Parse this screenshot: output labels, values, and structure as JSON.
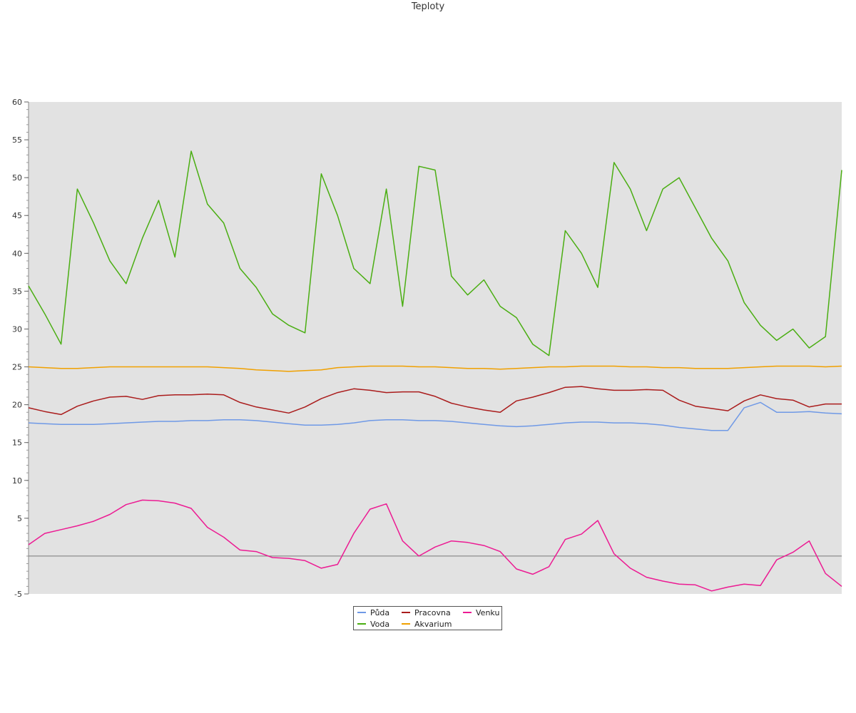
{
  "chart_data": {
    "type": "line",
    "title": "Teploty",
    "xlabel": "",
    "ylabel": "",
    "ylim": [
      -5,
      60
    ],
    "yticks": [
      -5,
      5,
      10,
      15,
      20,
      25,
      30,
      35,
      40,
      45,
      50,
      55,
      60
    ],
    "y_minor_step": 1,
    "zero_line": 0,
    "grid": false,
    "legend_position": "bottom-center",
    "background": "#e2e2e2",
    "x": [
      0,
      2,
      4,
      6,
      8,
      10,
      12,
      14,
      16,
      18,
      20,
      22,
      24,
      26,
      28,
      30,
      32,
      34,
      36,
      38,
      40,
      42,
      44,
      46,
      48,
      50,
      52,
      54,
      56,
      58,
      60,
      62,
      64,
      66,
      68,
      70,
      72,
      74,
      76,
      78,
      80,
      82,
      84,
      86,
      88,
      90,
      92,
      94,
      96,
      98,
      100
    ],
    "series": [
      {
        "name": "Půda",
        "color": "#6f99e6",
        "values": [
          17.6,
          17.5,
          17.4,
          17.4,
          17.4,
          17.5,
          17.6,
          17.7,
          17.8,
          17.8,
          17.9,
          17.9,
          18.0,
          18.0,
          17.9,
          17.7,
          17.5,
          17.3,
          17.3,
          17.4,
          17.6,
          17.9,
          18.0,
          18.0,
          17.9,
          17.9,
          17.8,
          17.6,
          17.4,
          17.2,
          17.1,
          17.2,
          17.4,
          17.6,
          17.7,
          17.7,
          17.6,
          17.6,
          17.5,
          17.3,
          17.0,
          16.8,
          16.6,
          16.6,
          19.6,
          20.3,
          19.0,
          19.0,
          19.1,
          18.9,
          18.8
        ]
      },
      {
        "name": "Voda",
        "color": "#4aae12",
        "values": [
          35.7,
          32.0,
          28.0,
          48.5,
          44.0,
          39.0,
          36.0,
          42.0,
          47.0,
          39.5,
          53.5,
          46.5,
          44.0,
          38.0,
          35.5,
          32.0,
          30.5,
          29.5,
          50.5,
          45.0,
          38.0,
          36.0,
          48.5,
          33.0,
          51.5,
          51.0,
          37.0,
          34.5,
          36.5,
          33.0,
          31.5,
          28.0,
          26.5,
          43.0,
          40.0,
          35.5,
          52.0,
          48.5,
          43.0,
          48.5,
          50.0,
          46.0,
          42.0,
          39.0,
          33.5,
          30.5,
          28.5,
          30.0,
          27.5,
          29.0,
          51.0
        ]
      },
      {
        "name": "Pracovna",
        "color": "#aa1c1c",
        "values": [
          19.6,
          19.1,
          18.7,
          19.8,
          20.5,
          21.0,
          21.1,
          20.7,
          21.2,
          21.3,
          21.3,
          21.4,
          21.3,
          20.3,
          19.7,
          19.3,
          18.9,
          19.7,
          20.8,
          21.6,
          22.1,
          21.9,
          21.6,
          21.7,
          21.7,
          21.1,
          20.2,
          19.7,
          19.3,
          19.0,
          20.5,
          21.0,
          21.6,
          22.3,
          22.4,
          22.1,
          21.9,
          21.9,
          22.0,
          21.9,
          20.6,
          19.8,
          19.5,
          19.2,
          20.5,
          21.3,
          20.8,
          20.6,
          19.7,
          20.1,
          20.1
        ]
      },
      {
        "name": "Akvarium",
        "color": "#f0a000",
        "values": [
          25.0,
          24.9,
          24.8,
          24.8,
          24.9,
          25.0,
          25.0,
          25.0,
          25.0,
          25.0,
          25.0,
          25.0,
          24.9,
          24.8,
          24.6,
          24.5,
          24.4,
          24.5,
          24.6,
          24.9,
          25.0,
          25.1,
          25.1,
          25.1,
          25.0,
          25.0,
          24.9,
          24.8,
          24.8,
          24.7,
          24.8,
          24.9,
          25.0,
          25.0,
          25.1,
          25.1,
          25.1,
          25.0,
          25.0,
          24.9,
          24.9,
          24.8,
          24.8,
          24.8,
          24.9,
          25.0,
          25.1,
          25.1,
          25.1,
          25.0,
          25.1
        ]
      },
      {
        "name": "Venku",
        "color": "#ec1b93",
        "values": [
          1.5,
          3.0,
          3.5,
          4.0,
          4.6,
          5.5,
          6.8,
          7.4,
          7.3,
          7.0,
          6.3,
          3.8,
          2.5,
          0.8,
          0.6,
          -0.2,
          -0.3,
          -0.6,
          -1.6,
          -1.1,
          3.0,
          6.2,
          6.9,
          2.0,
          0.0,
          1.2,
          2.0,
          1.8,
          1.4,
          0.6,
          -1.7,
          -2.4,
          -1.4,
          2.2,
          2.9,
          4.7,
          0.3,
          -1.6,
          -2.8,
          -3.3,
          -3.7,
          -3.8,
          -4.6,
          -4.1,
          -3.7,
          -3.9,
          -0.5,
          0.5,
          2.0,
          -2.3,
          -4.0
        ]
      }
    ]
  }
}
